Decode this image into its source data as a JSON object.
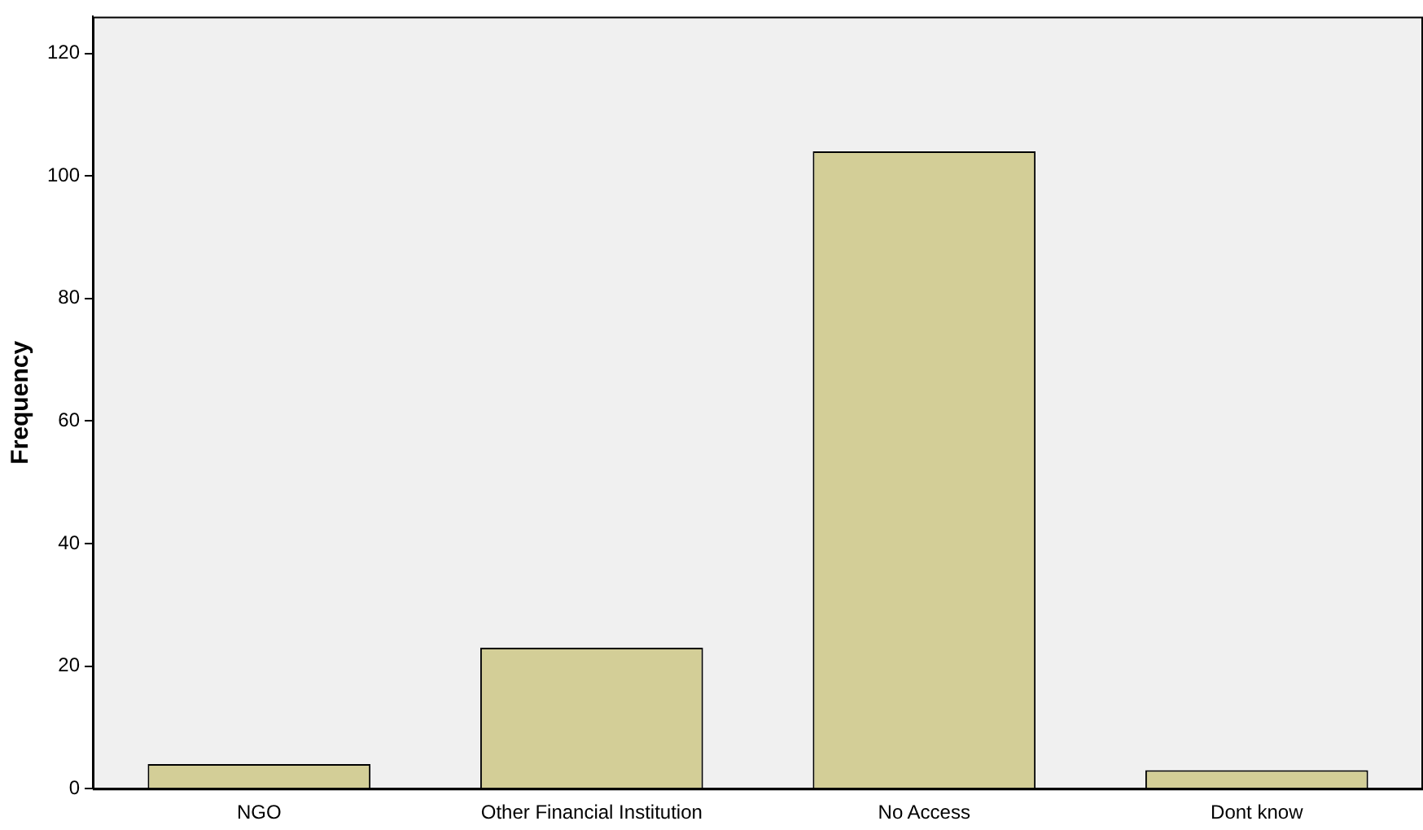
{
  "chart_data": {
    "type": "bar",
    "ylabel": "Frequency",
    "categories": [
      "NGO",
      "Other Financial Institution",
      "No Access",
      "Dont know"
    ],
    "values": [
      4,
      23,
      104,
      3
    ],
    "color": "#d3ce97",
    "ylim": [
      0,
      126
    ],
    "yticks": [
      0,
      20,
      40,
      60,
      80,
      100,
      120
    ],
    "grid": false,
    "legend": false
  }
}
